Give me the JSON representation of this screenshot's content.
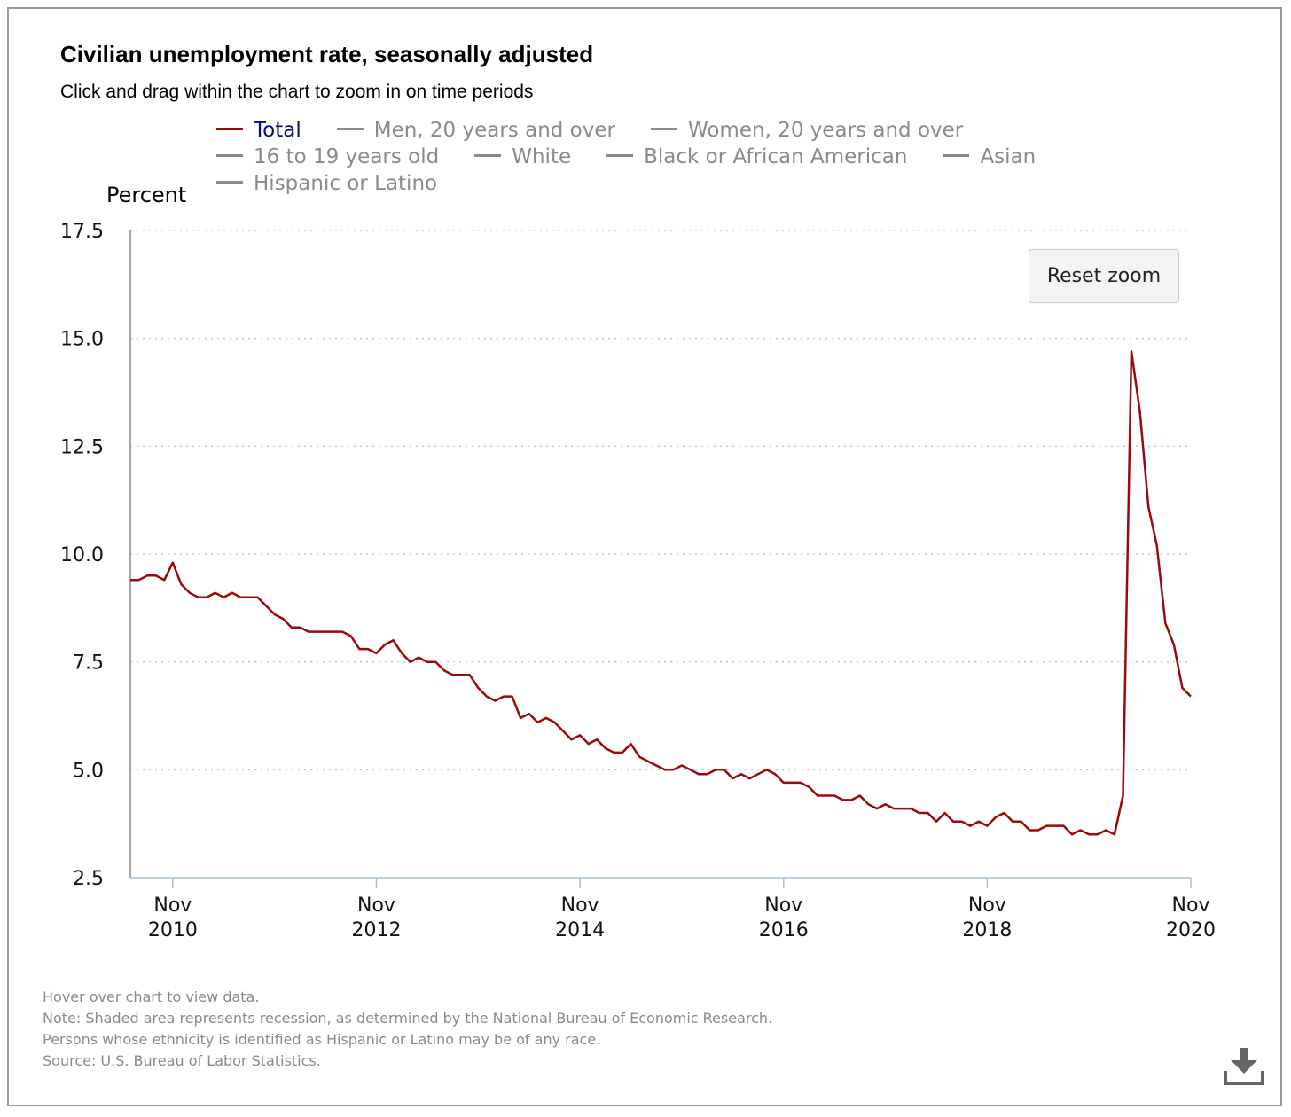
{
  "header": {
    "title": "Civilian unemployment rate, seasonally adjusted",
    "subtitle": "Click and drag within the chart to zoom in on time periods"
  },
  "legend": {
    "rows": [
      [
        {
          "label": "Total",
          "active": true
        },
        {
          "label": "Men, 20 years and over",
          "active": false
        },
        {
          "label": "Women, 20 years and over",
          "active": false
        }
      ],
      [
        {
          "label": "16 to 19 years old",
          "active": false
        },
        {
          "label": "White",
          "active": false
        },
        {
          "label": "Black or African American",
          "active": false
        },
        {
          "label": "Asian",
          "active": false
        }
      ],
      [
        {
          "label": "Hispanic or Latino",
          "active": false
        }
      ]
    ]
  },
  "toolbar": {
    "reset_zoom_label": "Reset zoom"
  },
  "footer": {
    "notes": [
      "Hover over chart to view data.",
      "Note: Shaded area represents recession, as determined by the National Bureau of Economic Research.",
      "Persons whose ethnicity is identified as Hispanic or Latino may be of any race.",
      "Source: U.S. Bureau of Labor Statistics."
    ],
    "download_icon": "download-icon"
  },
  "colors": {
    "series_total": "#9b0a0a",
    "legend_active_text": "#0b0b7a",
    "inactive": "#8a8a8a",
    "grid": "#c8c8c8"
  },
  "chart_data": {
    "type": "line",
    "ylabel": "Percent",
    "ylim": [
      2.5,
      17.5
    ],
    "yticks": [
      "17.5",
      "15.0",
      "12.5",
      "10.0",
      "7.5",
      "5.0",
      "2.5"
    ],
    "xticks": [
      {
        "month": "Nov",
        "year": "2010"
      },
      {
        "month": "Nov",
        "year": "2012"
      },
      {
        "month": "Nov",
        "year": "2014"
      },
      {
        "month": "Nov",
        "year": "2016"
      },
      {
        "month": "Nov",
        "year": "2018"
      },
      {
        "month": "Nov",
        "year": "2020"
      }
    ],
    "x_start": "2010-06",
    "x_end": "2020-11",
    "grid": "horizontal dotted",
    "legend_position": "top",
    "series": [
      {
        "name": "Total",
        "values": [
          9.4,
          9.4,
          9.5,
          9.5,
          9.4,
          9.8,
          9.3,
          9.1,
          9.0,
          9.0,
          9.1,
          9.0,
          9.1,
          9.0,
          9.0,
          9.0,
          8.8,
          8.6,
          8.5,
          8.3,
          8.3,
          8.2,
          8.2,
          8.2,
          8.2,
          8.2,
          8.1,
          7.8,
          7.8,
          7.7,
          7.9,
          8.0,
          7.7,
          7.5,
          7.6,
          7.5,
          7.5,
          7.3,
          7.2,
          7.2,
          7.2,
          6.9,
          6.7,
          6.6,
          6.7,
          6.7,
          6.2,
          6.3,
          6.1,
          6.2,
          6.1,
          5.9,
          5.7,
          5.8,
          5.6,
          5.7,
          5.5,
          5.4,
          5.4,
          5.6,
          5.3,
          5.2,
          5.1,
          5.0,
          5.0,
          5.1,
          5.0,
          4.9,
          4.9,
          5.0,
          5.0,
          4.8,
          4.9,
          4.8,
          4.9,
          5.0,
          4.9,
          4.7,
          4.7,
          4.7,
          4.6,
          4.4,
          4.4,
          4.4,
          4.3,
          4.3,
          4.4,
          4.2,
          4.1,
          4.2,
          4.1,
          4.1,
          4.1,
          4.0,
          4.0,
          3.8,
          4.0,
          3.8,
          3.8,
          3.7,
          3.8,
          3.7,
          3.9,
          4.0,
          3.8,
          3.8,
          3.6,
          3.6,
          3.7,
          3.7,
          3.7,
          3.5,
          3.6,
          3.5,
          3.5,
          3.6,
          3.5,
          4.4,
          14.7,
          13.3,
          11.1,
          10.2,
          8.4,
          7.9,
          6.9,
          6.7
        ]
      }
    ]
  }
}
